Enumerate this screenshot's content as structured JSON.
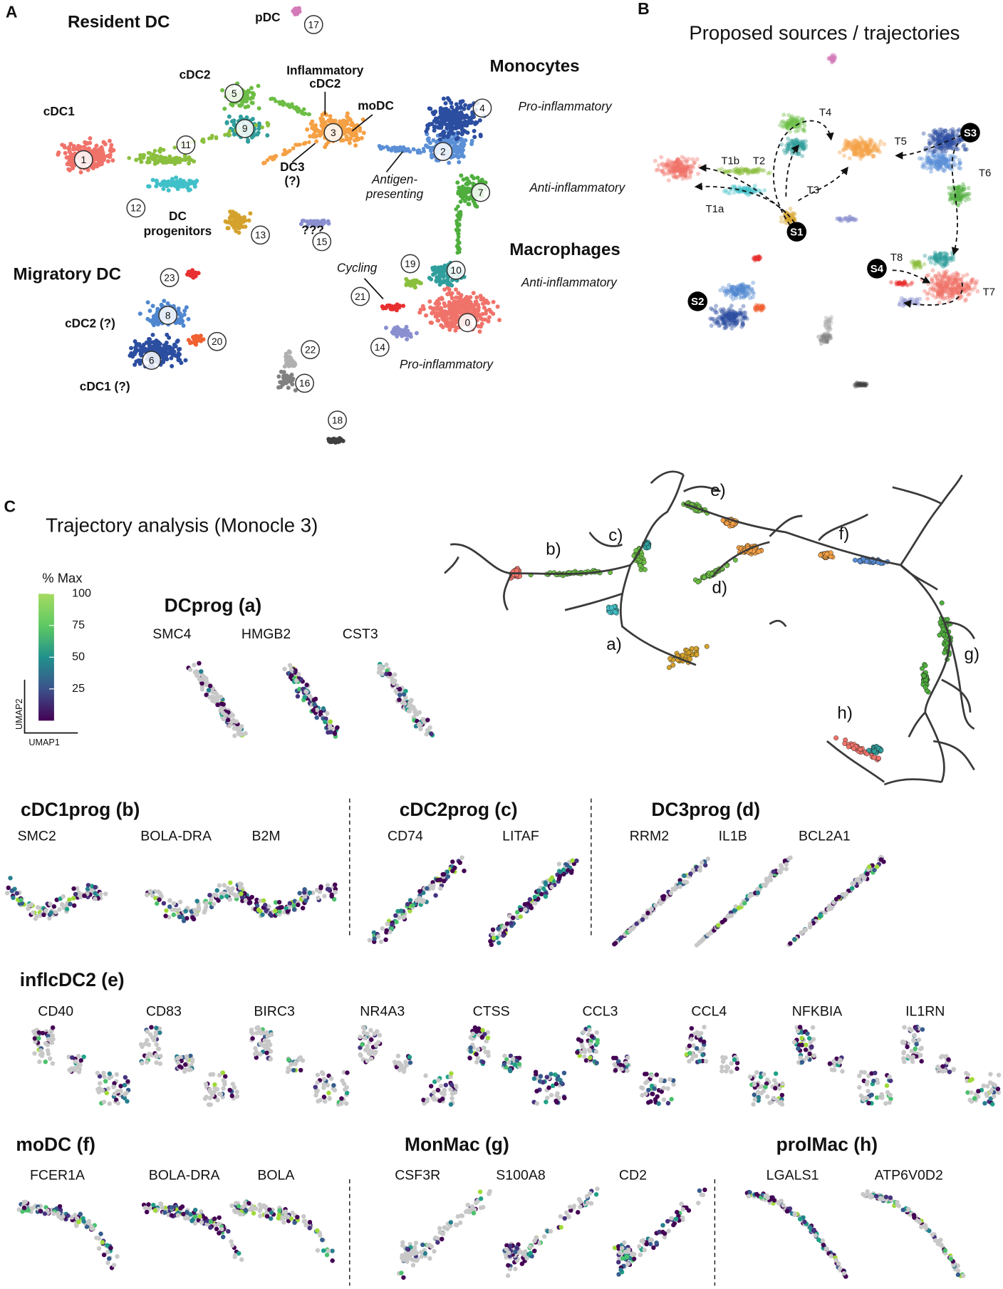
{
  "panel_a": {
    "label": "A",
    "headings": [
      "Resident DC",
      "Monocytes",
      "Macrophages",
      "Migratory DC"
    ],
    "cell_types": [
      [
        "pDC"
      ],
      [
        "cDC2"
      ],
      [
        "cDC1"
      ],
      [
        "Inflammatory",
        "cDC2"
      ],
      [
        "moDC"
      ],
      [
        "DC3",
        "(?)"
      ],
      [
        "DC",
        "progenitors"
      ],
      [
        "???"
      ],
      [
        "cDC2 (?)"
      ],
      [
        "cDC1 (?)"
      ]
    ],
    "annotations": [
      [
        "Pro-inflammatory"
      ],
      [
        "Anti-inflammatory"
      ],
      [
        "Antigen-",
        "presenting"
      ],
      [
        "Anti-inflammatory"
      ],
      [
        "Cycling"
      ],
      [
        "Pro-inflammatory"
      ]
    ],
    "clusters": [
      "0",
      "1",
      "2",
      "3",
      "4",
      "5",
      "6",
      "7",
      "8",
      "9",
      "10",
      "11",
      "12",
      "13",
      "14",
      "15",
      "16",
      "17",
      "18",
      "19",
      "20",
      "21",
      "22",
      "23"
    ]
  },
  "panel_b": {
    "label": "B",
    "title": "Proposed sources / trajectories",
    "sources": [
      "S1",
      "S2",
      "S3",
      "S4"
    ],
    "trajectories": [
      "T1a",
      "T1b",
      "T2",
      "T3",
      "T4",
      "T5",
      "T6",
      "T7",
      "T8"
    ]
  },
  "panel_c": {
    "label": "C",
    "title": "Trajectory analysis (Monocle 3)",
    "colorbar": {
      "title": "% Max",
      "ticks": [
        25,
        50,
        75,
        100
      ]
    },
    "axes": [
      "UMAP1",
      "UMAP2"
    ],
    "branches": [
      "a)",
      "b)",
      "c)",
      "d)",
      "e)",
      "f)",
      "g)",
      "h)"
    ],
    "gene_groups": [
      {
        "title": "DCprog (a)",
        "genes": [
          "SMC4",
          "HMGB2",
          "CST3"
        ]
      },
      {
        "title": "cDC1prog (b)",
        "genes": [
          "SMC2",
          "BOLA-DRA",
          "B2M"
        ]
      },
      {
        "title": "cDC2prog (c)",
        "genes": [
          "CD74",
          "LITAF"
        ]
      },
      {
        "title": "DC3prog (d)",
        "genes": [
          "RRM2",
          "IL1B",
          "BCL2A1"
        ]
      },
      {
        "title": "inflcDC2 (e)",
        "genes": [
          "CD40",
          "CD83",
          "BIRC3",
          "NR4A3",
          "CTSS",
          "CCL3",
          "CCL4",
          "NFKBIA",
          "IL1RN"
        ]
      },
      {
        "title": "moDC (f)",
        "genes": [
          "FCER1A",
          "BOLA-DRA",
          "BOLA"
        ]
      },
      {
        "title": "MonMac (g)",
        "genes": [
          "CSF3R",
          "S100A8",
          "CD2"
        ]
      },
      {
        "title": "prolMac (h)",
        "genes": [
          "LGALS1",
          "ATP6V0D2"
        ]
      }
    ]
  }
}
